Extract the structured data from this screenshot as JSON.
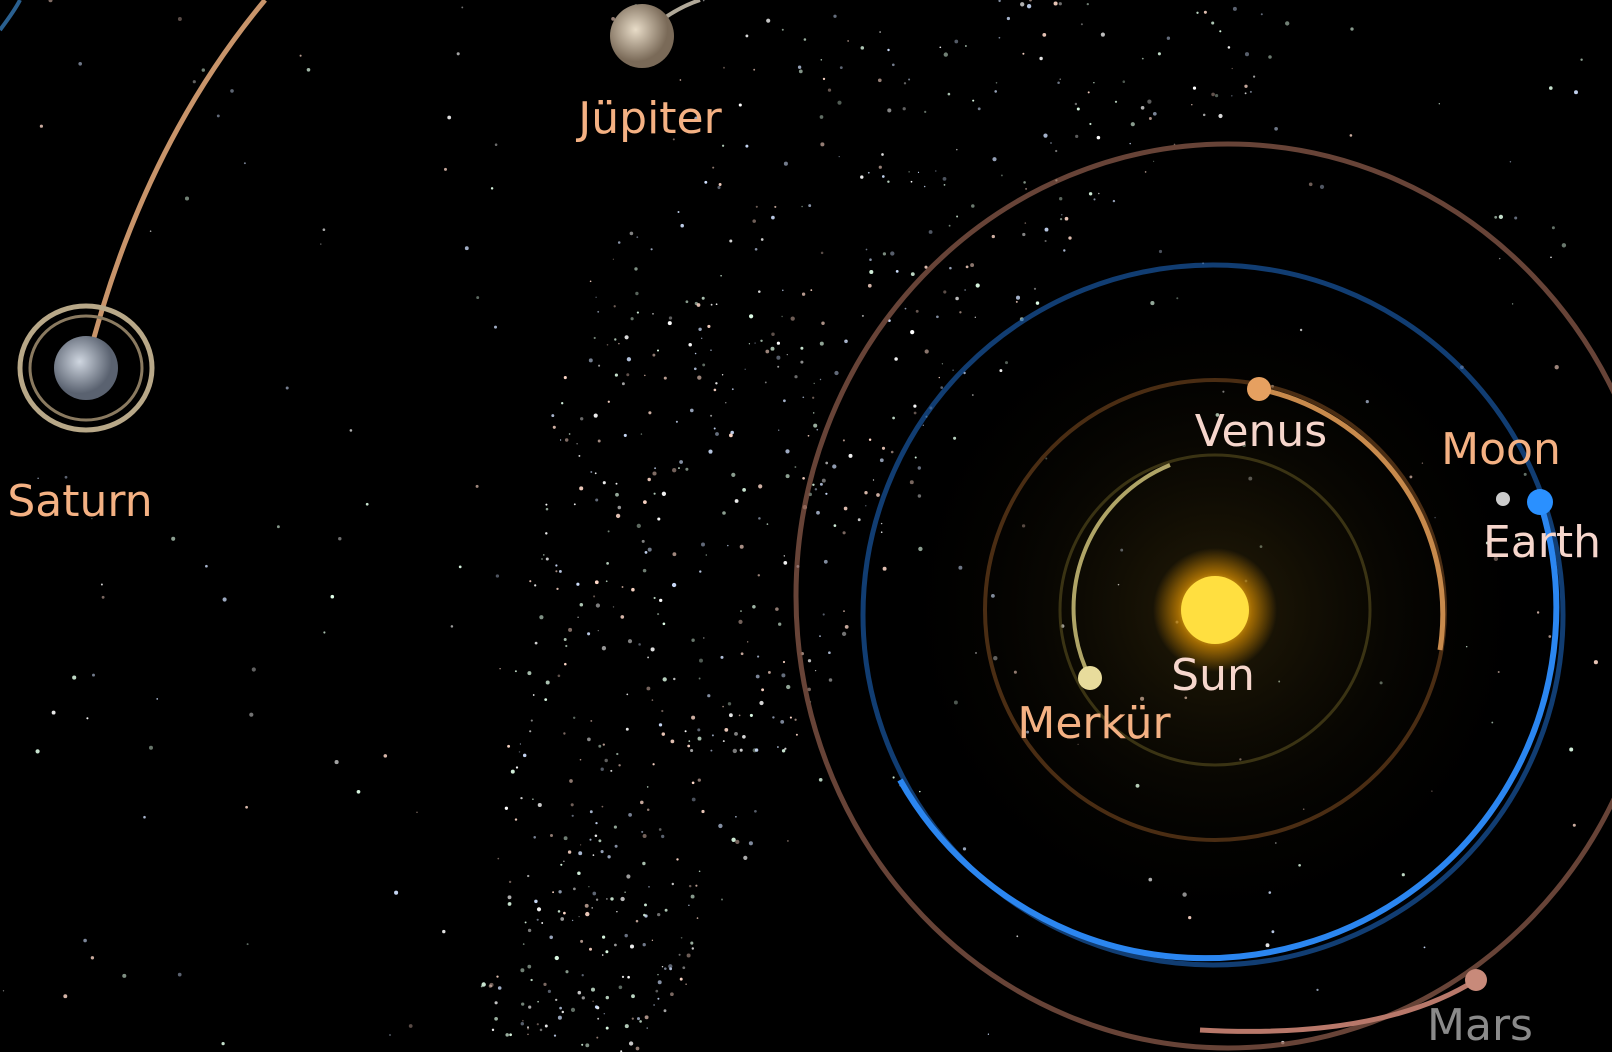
{
  "bodies": [
    {
      "label": "Jüpiter"
    },
    {
      "label": "Saturn"
    },
    {
      "label": "Venus"
    },
    {
      "label": "Moon"
    },
    {
      "label": "Earth"
    },
    {
      "label": "Sun"
    },
    {
      "label": "Merkür"
    },
    {
      "label": "Mars"
    }
  ]
}
